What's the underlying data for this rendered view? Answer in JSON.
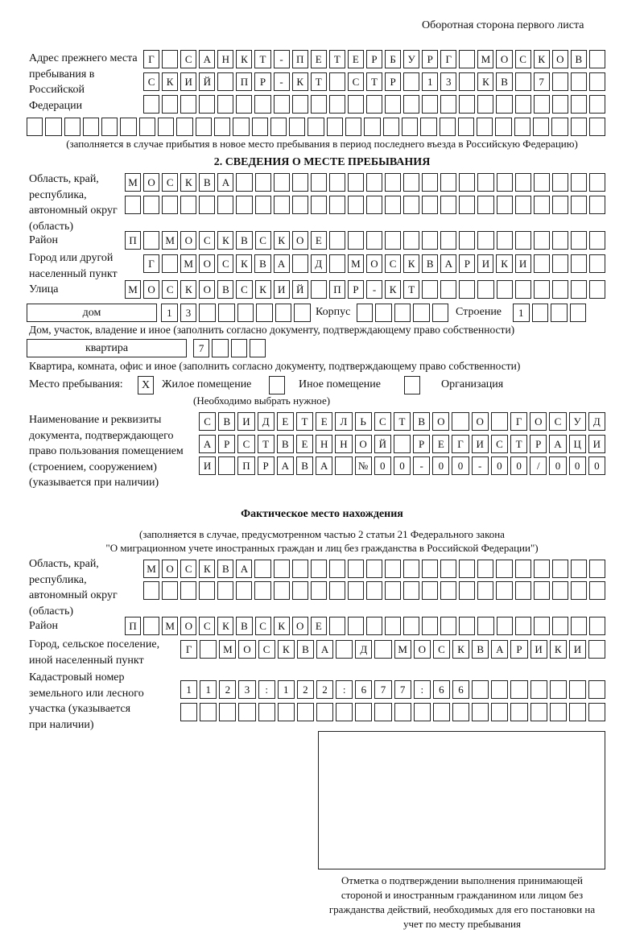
{
  "header": "Оборотная сторона первого листа",
  "prev_address": {
    "label": "Адрес прежнего места пребывания в Российской Федерации",
    "rows": [
      [
        "Г",
        "",
        "С",
        "А",
        "Н",
        "К",
        "Т",
        "-",
        "П",
        "Е",
        "Т",
        "Е",
        "Р",
        "Б",
        "У",
        "Р",
        "Г",
        "",
        "М",
        "О",
        "С",
        "К",
        "О",
        "В"
      ],
      [
        "С",
        "К",
        "И",
        "Й",
        "",
        "П",
        "Р",
        "-",
        "К",
        "Т",
        "",
        "С",
        "Т",
        "Р",
        "",
        "1",
        "3",
        "",
        "К",
        "В",
        "",
        "7",
        "",
        ""
      ],
      [],
      []
    ],
    "note": "(заполняется в случае прибытия в новое место пребывания в период последнего въезда в Российскую Федерацию)"
  },
  "section2": {
    "title": "2. СВЕДЕНИЯ О МЕСТЕ ПРЕБЫВАНИЯ",
    "region_label": "Область, край, республика, автономный округ (область)",
    "region_rows": [
      [
        "М",
        "О",
        "С",
        "К",
        "В",
        "А"
      ],
      []
    ],
    "district_label": "Район",
    "district": [
      "П",
      "",
      "М",
      "О",
      "С",
      "К",
      "В",
      "С",
      "К",
      "О",
      "Е"
    ],
    "city_label": "Город или другой населенный пункт",
    "city": [
      "Г",
      "",
      "М",
      "О",
      "С",
      "К",
      "В",
      "А",
      "",
      "Д",
      "",
      "М",
      "О",
      "С",
      "К",
      "В",
      "А",
      "Р",
      "И",
      "К",
      "И"
    ],
    "street_label": "Улица",
    "street": [
      "М",
      "О",
      "С",
      "К",
      "О",
      "В",
      "С",
      "К",
      "И",
      "Й",
      "",
      "П",
      "Р",
      "-",
      "К",
      "Т"
    ],
    "house_type": "дом",
    "house": [
      "1",
      "3"
    ],
    "korpus_label": "Корпус",
    "korpus": [],
    "building_label": "Строение",
    "building": [
      "1"
    ],
    "house_note": "Дом, участок, владение и иное (заполнить согласно документу, подтверждающему право собственности)",
    "apt_type": "квартира",
    "apt": [
      "7"
    ],
    "apt_note": "Квартира, комната, офис и иное (заполнить согласно документу, подтверждающему право собственности)",
    "place_label": "Место пребывания:",
    "place_options": [
      {
        "label": "Жилое помещение",
        "mark": "X"
      },
      {
        "label": "Иное помещение",
        "mark": ""
      },
      {
        "label": "Организация",
        "mark": ""
      }
    ],
    "place_note": "(Необходимо выбрать нужное)",
    "doc_label": "Наименование и реквизиты документа, подтверждающего право пользования помещением (строением, сооружением) (указывается при наличии)",
    "doc_rows": [
      [
        "С",
        "В",
        "И",
        "Д",
        "Е",
        "Т",
        "Е",
        "Л",
        "Ь",
        "С",
        "Т",
        "В",
        "О",
        "",
        "О",
        "",
        "Г",
        "О",
        "С",
        "У",
        "Д"
      ],
      [
        "А",
        "Р",
        "С",
        "Т",
        "В",
        "Е",
        "Н",
        "Н",
        "О",
        "Й",
        "",
        "Р",
        "Е",
        "Г",
        "И",
        "С",
        "Т",
        "Р",
        "А",
        "Ц",
        "И"
      ],
      [
        "И",
        "",
        "П",
        "Р",
        "А",
        "В",
        "А",
        "",
        "№",
        "0",
        "0",
        "-",
        "0",
        "0",
        "-",
        "0",
        "0",
        "/",
        "0",
        "0",
        "0"
      ]
    ]
  },
  "actual": {
    "title": "Фактическое место нахождения",
    "note1": "(заполняется в случае, предусмотренном частью 2 статьи 21 Федерального закона",
    "note2": "\"О миграционном учете иностранных граждан и лиц без гражданства в Российской Федерации\")",
    "region_label": "Область, край, республика, автономный округ (область)",
    "region_rows": [
      [
        "М",
        "О",
        "С",
        "К",
        "В",
        "А"
      ],
      []
    ],
    "district_label": "Район",
    "district": [
      "П",
      "",
      "М",
      "О",
      "С",
      "К",
      "В",
      "С",
      "К",
      "О",
      "Е"
    ],
    "city_label": "Город, сельское поселение, иной населенный пункт",
    "city": [
      "Г",
      "",
      "М",
      "О",
      "С",
      "К",
      "В",
      "А",
      "",
      "Д",
      "",
      "М",
      "О",
      "С",
      "К",
      "В",
      "А",
      "Р",
      "И",
      "К",
      "И"
    ],
    "cadastral_label": "Кадастровый номер земельного или лесного участка (указывается при наличии)",
    "cadastral_rows": [
      [
        "1",
        "1",
        "2",
        "3",
        ":",
        "1",
        "2",
        "2",
        ":",
        "6",
        "7",
        "7",
        ":",
        "6",
        "6"
      ],
      []
    ]
  },
  "stamp_caption": "Отметка о подтверждении выполнения принимающей стороной и иностранным гражданином или лицом без гражданства действий, необходимых для его постановки на учет по месту пребывания"
}
